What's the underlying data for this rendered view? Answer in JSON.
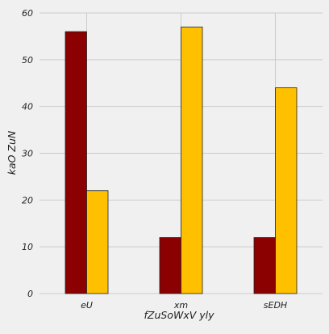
{
  "chart_data": {
    "type": "bar",
    "title": "",
    "xlabel": "fZuSoWxV yly",
    "ylabel": "kaO ZuN",
    "categories": [
      "eU",
      "xm",
      "sEDH"
    ],
    "series": [
      {
        "values": [
          56,
          12,
          12
        ],
        "color": "#8b0000"
      },
      {
        "values": [
          22,
          57,
          44
        ],
        "color": "#ffc000"
      }
    ],
    "ylim": [
      0,
      60
    ],
    "yticks": [
      0,
      10,
      20,
      30,
      40,
      50,
      60
    ],
    "grid": true,
    "background": "#f0f0f0",
    "grid_color": "#cbcbcb",
    "bar_edge_color": "#222222"
  }
}
